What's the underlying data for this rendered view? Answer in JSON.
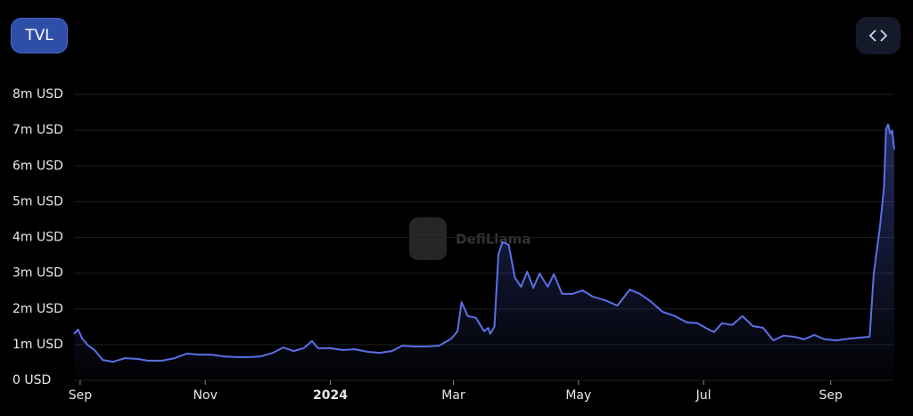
{
  "ui": {
    "tab": "TVL",
    "watermark": "DefiLlama"
  },
  "chart_data": {
    "type": "line",
    "xlim": [
      -3,
      397
    ],
    "xticks": [
      {
        "value": 0,
        "label": "Sep"
      },
      {
        "value": 61,
        "label": "Nov"
      },
      {
        "value": 122,
        "label": "2024"
      },
      {
        "value": 182,
        "label": "Mar"
      },
      {
        "value": 243,
        "label": "May"
      },
      {
        "value": 304,
        "label": "Jul"
      },
      {
        "value": 366,
        "label": "Sep"
      }
    ],
    "ylim": [
      0,
      8000000
    ],
    "yticks": [
      {
        "value": 0,
        "label": "0 USD"
      },
      {
        "value": 1000000,
        "label": "1m USD"
      },
      {
        "value": 2000000,
        "label": "2m USD"
      },
      {
        "value": 3000000,
        "label": "3m USD"
      },
      {
        "value": 4000000,
        "label": "4m USD"
      },
      {
        "value": 5000000,
        "label": "5m USD"
      },
      {
        "value": 6000000,
        "label": "6m USD"
      },
      {
        "value": 7000000,
        "label": "7m USD"
      },
      {
        "value": 8000000,
        "label": "8m USD"
      }
    ],
    "grid": true,
    "color": "#5b6fe6",
    "x": [
      -3,
      -1,
      1,
      4,
      7,
      11,
      16,
      22,
      28,
      33,
      40,
      46,
      52,
      58,
      64,
      70,
      76,
      82,
      88,
      94,
      99,
      104,
      109,
      113,
      116,
      122,
      128,
      134,
      140,
      146,
      152,
      157,
      163,
      169,
      175,
      181,
      184,
      186,
      189,
      193,
      197,
      199,
      200,
      202,
      204,
      206,
      209,
      212,
      215,
      218,
      221,
      224,
      228,
      231,
      235,
      240,
      245,
      250,
      256,
      262,
      268,
      273,
      278,
      284,
      290,
      296,
      301,
      305,
      309,
      313,
      318,
      323,
      328,
      333,
      338,
      343,
      348,
      353,
      358,
      363,
      369,
      375,
      381,
      385,
      387,
      390,
      392,
      393,
      394,
      395,
      396,
      397
    ],
    "values": [
      1300000,
      1420000,
      1170000,
      970000,
      850000,
      570000,
      520000,
      620000,
      600000,
      550000,
      550000,
      620000,
      750000,
      720000,
      720000,
      670000,
      650000,
      650000,
      670000,
      770000,
      920000,
      820000,
      900000,
      1100000,
      900000,
      900000,
      850000,
      870000,
      800000,
      770000,
      820000,
      970000,
      950000,
      950000,
      970000,
      1170000,
      1370000,
      2190000,
      1800000,
      1750000,
      1370000,
      1470000,
      1300000,
      1500000,
      3540000,
      3870000,
      3790000,
      2870000,
      2620000,
      3040000,
      2590000,
      2990000,
      2620000,
      2970000,
      2420000,
      2420000,
      2520000,
      2340000,
      2240000,
      2090000,
      2540000,
      2420000,
      2220000,
      1920000,
      1800000,
      1620000,
      1600000,
      1470000,
      1350000,
      1600000,
      1550000,
      1800000,
      1520000,
      1470000,
      1120000,
      1250000,
      1220000,
      1150000,
      1270000,
      1150000,
      1120000,
      1170000,
      1200000,
      1220000,
      2990000,
      4290000,
      5410000,
      7030000,
      7160000,
      6910000,
      6980000,
      6460000
    ]
  }
}
